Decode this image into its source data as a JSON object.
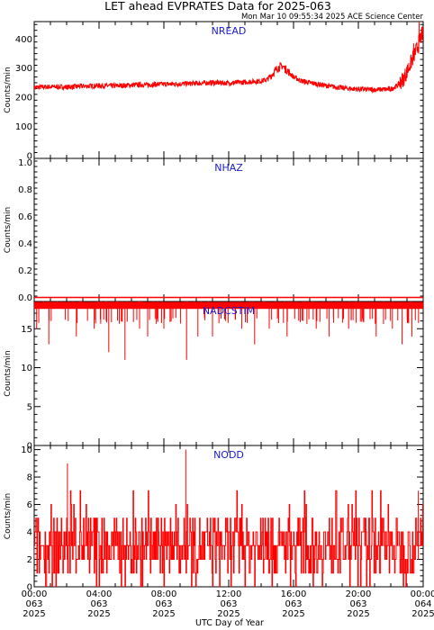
{
  "title": "LET ahead EVPRATES Data for 2025-063",
  "timestamp": "Mon Mar 10 09:55:34 2025 ACE Science Center",
  "x_axis_label": "UTC Day of Year",
  "x_ticks": [
    {
      "time": "00:00",
      "doy": "063",
      "year": "2025"
    },
    {
      "time": "04:00",
      "doy": "063",
      "year": "2025"
    },
    {
      "time": "08:00",
      "doy": "063",
      "year": "2025"
    },
    {
      "time": "12:00",
      "doy": "063",
      "year": "2025"
    },
    {
      "time": "16:00",
      "doy": "063",
      "year": "2025"
    },
    {
      "time": "20:00",
      "doy": "063",
      "year": "2025"
    },
    {
      "time": "00:00",
      "doy": "064",
      "year": "2025"
    }
  ],
  "colors": {
    "data": "#ff0000",
    "panel_title": "#1b1bd0",
    "axis": "#000000"
  },
  "chart_data": [
    {
      "type": "line",
      "title": "NREAD",
      "ylabel": "Counts/min",
      "xlim": [
        0,
        24
      ],
      "ylim": [
        -10,
        460
      ],
      "yticks": [
        0,
        100,
        200,
        300,
        400
      ],
      "series": [
        {
          "x": [
            0,
            1,
            2,
            3,
            4,
            5,
            6,
            7,
            8,
            9,
            10,
            11,
            12,
            13,
            14,
            14.4,
            14.7,
            15,
            15.3,
            15.6,
            16,
            16.5,
            17,
            18,
            19,
            20,
            21,
            22,
            22.4,
            22.8,
            23.1,
            23.4,
            23.6,
            23.8,
            24
          ],
          "y": [
            234,
            236,
            235,
            238,
            240,
            239,
            242,
            243,
            245,
            246,
            248,
            250,
            249,
            252,
            256,
            262,
            280,
            300,
            308,
            292,
            270,
            256,
            250,
            240,
            232,
            228,
            226,
            228,
            240,
            265,
            300,
            340,
            365,
            400,
            420
          ]
        }
      ]
    },
    {
      "type": "line",
      "title": "NHAZ",
      "ylabel": "Counts/min",
      "xlim": [
        0,
        24
      ],
      "ylim": [
        -0.03,
        1.03
      ],
      "yticks": [
        0.0,
        0.2,
        0.4,
        0.6,
        0.8,
        1.0
      ],
      "series": [
        {
          "x": [
            0,
            24
          ],
          "y": [
            0,
            0
          ]
        }
      ]
    },
    {
      "type": "line",
      "title": "NADCSTIM",
      "ylabel": "Counts/min",
      "xlim": [
        0,
        24
      ],
      "ylim": [
        0,
        18.5
      ],
      "yticks": [
        0,
        5,
        10,
        15
      ],
      "series": [
        {
          "baseline": 18,
          "spikes_x": [
            0.15,
            0.9,
            2.1,
            2.6,
            3.7,
            4.6,
            5.6,
            6.5,
            7.0,
            8.0,
            9.4,
            10.1,
            11.0,
            11.8,
            12.8,
            13.6,
            14.5,
            15.6,
            16.6,
            17.4,
            18.2,
            19.4,
            20.3,
            21.1,
            22.1,
            22.7,
            23.3
          ],
          "spikes_y": [
            15,
            13,
            16,
            14,
            15,
            12,
            11,
            15,
            14,
            15,
            11,
            14,
            14,
            16,
            15,
            13,
            15,
            14,
            16,
            15,
            14,
            15,
            16,
            14,
            15,
            13,
            14
          ]
        }
      ]
    },
    {
      "type": "line",
      "title": "NODD",
      "ylabel": "Counts/min",
      "xlim": [
        0,
        24
      ],
      "ylim": [
        0,
        10.3
      ],
      "yticks": [
        0,
        2,
        4,
        6,
        8,
        10
      ],
      "series": [
        {
          "pattern": "integer counts fluctuating between 0 and 5, mean about 2.5",
          "peaks_x": [
            2.05,
            9.35,
            23.7
          ],
          "peaks_y": [
            9,
            10,
            7
          ]
        }
      ]
    }
  ]
}
